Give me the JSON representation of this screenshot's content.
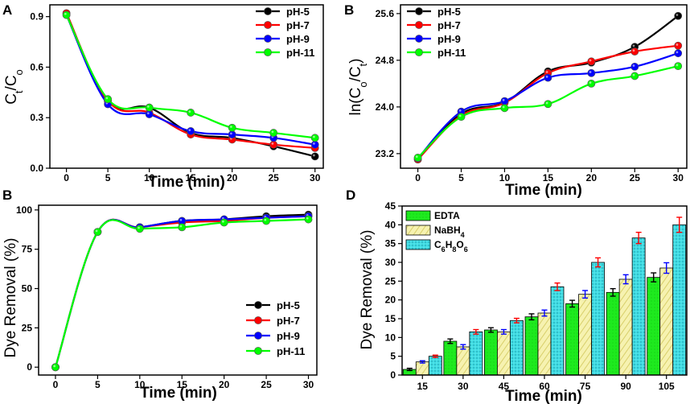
{
  "chart_data": [
    {
      "panel": "A",
      "type": "line",
      "xlabel": "Time (min)",
      "ylabel": "Ct/Co",
      "ylabel_main": "C",
      "ylabel_sub1": "t",
      "ylabel_slash": "/C",
      "ylabel_sub2": "o",
      "xlim": [
        -2,
        31
      ],
      "ylim": [
        0.0,
        0.97
      ],
      "xticks": [
        "0",
        "5",
        "10",
        "15",
        "20",
        "25",
        "30"
      ],
      "yticks": [
        "0.0",
        "0.3",
        "0.6",
        "0.9"
      ],
      "x": [
        0,
        5,
        10,
        15,
        20,
        25,
        30
      ],
      "legend_position": "top-right",
      "series": [
        {
          "name": "pH-5",
          "color": "#000000",
          "values": [
            0.92,
            0.4,
            0.36,
            0.21,
            0.18,
            0.13,
            0.07
          ]
        },
        {
          "name": "pH-7",
          "color": "#ff0000",
          "values": [
            0.92,
            0.4,
            0.33,
            0.2,
            0.17,
            0.14,
            0.12
          ]
        },
        {
          "name": "pH-9",
          "color": "#0000ff",
          "values": [
            0.91,
            0.38,
            0.32,
            0.22,
            0.2,
            0.18,
            0.14
          ]
        },
        {
          "name": "pH-11",
          "color": "#00ff00",
          "values": [
            0.91,
            0.41,
            0.36,
            0.33,
            0.24,
            0.21,
            0.18
          ]
        }
      ]
    },
    {
      "panel": "B",
      "type": "line",
      "xlabel": "Time (min)",
      "ylabel": "ln(Co/Ct)",
      "ylabel_pre": "ln(C",
      "ylabel_sub1": "o",
      "ylabel_slash": "/C",
      "ylabel_sub2": "t",
      "ylabel_post": ")",
      "xlim": [
        -2,
        31
      ],
      "ylim": [
        22.95,
        25.75
      ],
      "xticks": [
        "0",
        "5",
        "10",
        "15",
        "20",
        "25",
        "30"
      ],
      "yticks": [
        "23.2",
        "24.0",
        "24.8",
        "25.6"
      ],
      "x": [
        0,
        5,
        10,
        15,
        20,
        25,
        30
      ],
      "legend_position": "top-left",
      "series": [
        {
          "name": "pH-5",
          "color": "#000000",
          "values": [
            23.1,
            23.88,
            24.08,
            24.61,
            24.76,
            25.03,
            25.56
          ]
        },
        {
          "name": "pH-7",
          "color": "#ff0000",
          "values": [
            23.1,
            23.85,
            24.07,
            24.58,
            24.78,
            24.95,
            25.05
          ]
        },
        {
          "name": "pH-9",
          "color": "#0000ff",
          "values": [
            23.12,
            23.92,
            24.1,
            24.5,
            24.58,
            24.69,
            24.92
          ]
        },
        {
          "name": "pH-11",
          "color": "#00ff00",
          "values": [
            23.13,
            23.83,
            23.98,
            24.05,
            24.4,
            24.53,
            24.7
          ]
        }
      ]
    },
    {
      "panel": "B",
      "type": "line",
      "xlabel": "Time (min)",
      "ylabel": "Dye Removal (%)",
      "xlim": [
        -2,
        31
      ],
      "ylim": [
        -5,
        103
      ],
      "xticks": [
        "0",
        "5",
        "10",
        "15",
        "20",
        "25",
        "30"
      ],
      "yticks": [
        "0",
        "25",
        "50",
        "75",
        "100"
      ],
      "x": [
        0,
        5,
        10,
        15,
        20,
        25,
        30
      ],
      "legend_position": "bottom-right",
      "series": [
        {
          "name": "pH-5",
          "color": "#000000",
          "values": [
            0,
            86,
            89,
            93,
            94,
            96,
            97
          ]
        },
        {
          "name": "pH-7",
          "color": "#ff0000",
          "values": [
            0,
            86,
            89,
            92,
            93,
            95,
            96
          ]
        },
        {
          "name": "pH-9",
          "color": "#0000ff",
          "values": [
            0,
            86,
            89,
            93,
            94,
            95,
            96
          ]
        },
        {
          "name": "pH-11",
          "color": "#00ff00",
          "values": [
            0,
            86,
            88,
            89,
            92,
            93,
            94
          ]
        }
      ]
    },
    {
      "panel": "D",
      "type": "bar",
      "xlabel": "Time (min)",
      "ylabel": "Dye Removal (%)",
      "categories": [
        "15",
        "30",
        "45",
        "60",
        "75",
        "90",
        "105"
      ],
      "ylim": [
        0,
        45
      ],
      "yticks": [
        "0",
        "5",
        "10",
        "15",
        "20",
        "25",
        "30",
        "35",
        "40",
        "45"
      ],
      "legend_position": "top-left",
      "legend_labels": {
        "edta": "EDTA",
        "nabh4_main": "NaBH",
        "nabh4_sub": "4",
        "c6_a": "C",
        "c6_s1": "6",
        "c6_b": "H",
        "c6_s2": "8",
        "c6_c": "O",
        "c6_s3": "6"
      },
      "series": [
        {
          "name": "EDTA",
          "color": "#22ee22",
          "error_color": "#000000",
          "values": [
            1.5,
            9.0,
            12.0,
            15.5,
            19.0,
            22.0,
            26.0
          ],
          "errors": [
            0.3,
            0.6,
            0.6,
            0.8,
            0.9,
            1.0,
            1.2
          ]
        },
        {
          "name": "NaBH4",
          "color": "#f2efa0",
          "error_color": "#0000ff",
          "values": [
            3.5,
            7.5,
            11.5,
            16.5,
            21.5,
            25.5,
            28.5
          ],
          "errors": [
            0.3,
            0.6,
            0.6,
            0.8,
            1.0,
            1.2,
            1.4
          ]
        },
        {
          "name": "C6H8O6",
          "color": "#33d9e0",
          "error_color": "#ff0000",
          "values": [
            5.0,
            11.5,
            14.5,
            23.5,
            30.0,
            36.5,
            40.0
          ],
          "errors": [
            0.3,
            0.6,
            0.6,
            1.0,
            1.2,
            1.5,
            2.0
          ]
        }
      ]
    }
  ]
}
